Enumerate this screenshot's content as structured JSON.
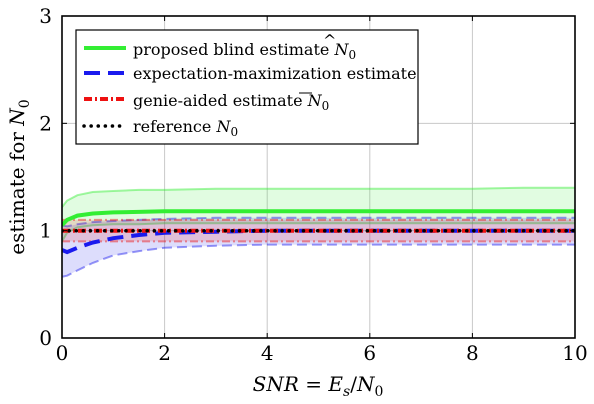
{
  "chart_data": {
    "type": "line",
    "xlabel": "SNR = E_s/N_0",
    "ylabel": "estimate for N_0",
    "xlim": [
      0,
      10
    ],
    "ylim": [
      0,
      3
    ],
    "xticks": [
      "0",
      "2",
      "4",
      "6",
      "8",
      "10"
    ],
    "yticks": [
      "0",
      "1",
      "2",
      "3"
    ],
    "grid": true,
    "legend_position": "top-left",
    "series": [
      {
        "name": "proposed blind estimate N̂_0",
        "color": "#33ee33",
        "style": "solid",
        "x": [
          0,
          0.1,
          0.3,
          0.6,
          1,
          1.5,
          2,
          3,
          4,
          5,
          6,
          7,
          8,
          9,
          10
        ],
        "y": [
          1.05,
          1.1,
          1.14,
          1.16,
          1.17,
          1.175,
          1.18,
          1.18,
          1.18,
          1.18,
          1.18,
          1.18,
          1.18,
          1.18,
          1.18
        ],
        "band_upper": [
          1.22,
          1.28,
          1.33,
          1.36,
          1.37,
          1.38,
          1.38,
          1.39,
          1.39,
          1.39,
          1.39,
          1.39,
          1.39,
          1.4,
          1.4
        ],
        "band_lower": [
          0.9,
          0.98,
          1.03,
          1.05,
          1.06,
          1.06,
          1.07,
          1.07,
          1.07,
          1.07,
          1.07,
          1.07,
          1.07,
          1.07,
          1.07
        ]
      },
      {
        "name": "expectation-maximization estimate",
        "color": "#1a1aee",
        "style": "dashed",
        "x": [
          0,
          0.1,
          0.3,
          0.6,
          1,
          1.5,
          2,
          3,
          4,
          5,
          6,
          7,
          8,
          9,
          10
        ],
        "y": [
          0.82,
          0.8,
          0.84,
          0.89,
          0.93,
          0.96,
          0.98,
          0.99,
          1.0,
          1.0,
          1.0,
          1.0,
          1.0,
          1.0,
          1.0
        ],
        "band_upper": [
          1.05,
          1.04,
          1.06,
          1.08,
          1.09,
          1.1,
          1.11,
          1.12,
          1.12,
          1.12,
          1.12,
          1.12,
          1.12,
          1.12,
          1.12
        ],
        "band_lower": [
          0.57,
          0.58,
          0.63,
          0.7,
          0.77,
          0.81,
          0.84,
          0.86,
          0.87,
          0.87,
          0.87,
          0.87,
          0.87,
          0.87,
          0.87
        ]
      },
      {
        "name": "genie-aided estimate N̄_0",
        "color": "#ee1111",
        "style": "dash-dot",
        "x": [
          0,
          1,
          2,
          3,
          4,
          5,
          6,
          7,
          8,
          9,
          10
        ],
        "y": [
          1.0,
          1.0,
          1.0,
          1.0,
          1.0,
          1.0,
          1.0,
          1.0,
          1.0,
          1.0,
          1.0
        ],
        "band_upper": [
          1.1,
          1.1,
          1.1,
          1.1,
          1.1,
          1.1,
          1.1,
          1.1,
          1.1,
          1.1,
          1.1
        ],
        "band_lower": [
          0.9,
          0.9,
          0.9,
          0.9,
          0.9,
          0.9,
          0.9,
          0.9,
          0.9,
          0.9,
          0.9
        ]
      },
      {
        "name": "reference N_0",
        "color": "#000000",
        "style": "dotted",
        "x": [
          0,
          10
        ],
        "y": [
          1.0,
          1.0
        ]
      }
    ]
  }
}
